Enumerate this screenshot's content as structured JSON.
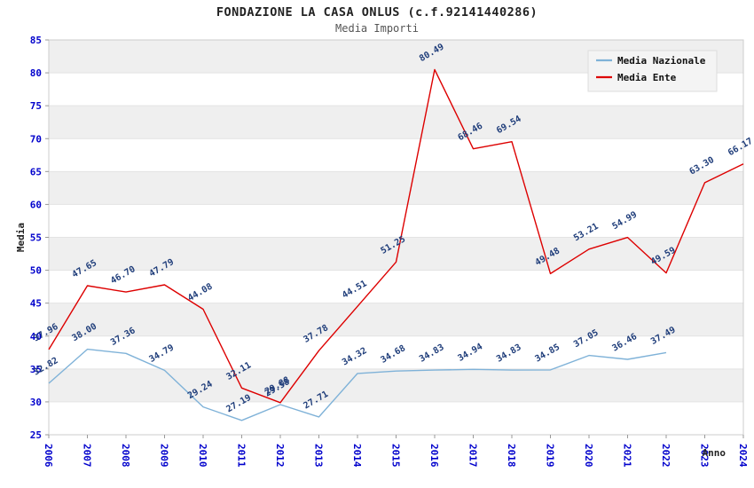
{
  "title": "FONDAZIONE LA CASA ONLUS (c.f.92141440286)",
  "subtitle": "Media Importi",
  "chart_data": {
    "type": "line",
    "title": "FONDAZIONE LA CASA ONLUS (c.f.92141440286)",
    "subtitle": "Media Importi",
    "xlabel": "Anno",
    "ylabel": "Media",
    "ylim": [
      25,
      85
    ],
    "ytick_step": 5,
    "grid": true,
    "legend_position": "top-right",
    "axis_color": "#0000cc",
    "point_label_color": "#1f3d7a",
    "band_color": "#efefef",
    "legend_bg": "#f4f4f4",
    "categories": [
      "2006",
      "2007",
      "2008",
      "2009",
      "2010",
      "2011",
      "2012",
      "2013",
      "2014",
      "2015",
      "2016",
      "2017",
      "2018",
      "2019",
      "2020",
      "2021",
      "2022",
      "2023",
      "2024"
    ],
    "series": [
      {
        "name": "Media Nazionale",
        "color": "#7fb2d8",
        "values": [
          32.82,
          38.0,
          37.36,
          34.79,
          29.24,
          27.19,
          29.58,
          27.71,
          34.32,
          34.68,
          34.83,
          34.94,
          34.83,
          34.85,
          37.05,
          36.46,
          37.49,
          null,
          null
        ]
      },
      {
        "name": "Media Ente",
        "color": "#dd0000",
        "values": [
          37.96,
          47.65,
          46.7,
          47.79,
          44.08,
          32.11,
          29.88,
          37.78,
          44.51,
          51.25,
          80.49,
          68.46,
          69.54,
          49.48,
          53.21,
          54.99,
          49.59,
          63.3,
          66.17
        ]
      }
    ]
  }
}
